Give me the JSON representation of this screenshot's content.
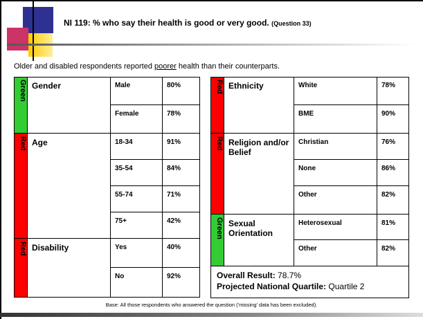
{
  "title": "NI 119: % who say their health is good or very good.",
  "title_note": "(Question 33)",
  "subtitle": [
    "Older and disabled respondents reported ",
    "poorer",
    " health than their counterparts."
  ],
  "left_table": [
    {
      "status": "Green",
      "group": "Gender",
      "rows": [
        [
          "Male",
          "80%"
        ],
        [
          "Female",
          "78%"
        ]
      ]
    },
    {
      "status": "Red",
      "group": "Age",
      "rows": [
        [
          "18-34",
          "91%"
        ],
        [
          "35-54",
          "84%"
        ],
        [
          "55-74",
          "71%"
        ],
        [
          "75+",
          "42%"
        ]
      ]
    },
    {
      "status": "Red",
      "group": "Disability",
      "rows": [
        [
          "Yes",
          "40%"
        ],
        [
          "No",
          "92%"
        ]
      ]
    }
  ],
  "right_table": [
    {
      "status": "Red",
      "group": "Ethnicity",
      "rows": [
        [
          "White",
          "78%"
        ],
        [
          "BME",
          "90%"
        ]
      ]
    },
    {
      "status": "Red",
      "group": "Religion and/or Belief",
      "rows": [
        [
          "Christian",
          "76%"
        ],
        [
          "None",
          "86%"
        ],
        [
          "Other",
          "82%"
        ]
      ]
    },
    {
      "status": "Green",
      "group": "Sexual Orientation",
      "rows": [
        [
          "Heterosexual",
          "81%"
        ],
        [
          "Other",
          "82%"
        ]
      ]
    }
  ],
  "overall": {
    "label": "Overall Result:",
    "value": "78.7%"
  },
  "quartile": {
    "label": "Projected National Quartile:",
    "value": "Quartile 2"
  },
  "footer": "Base: All those respondents who answered the question ('missing' data has been excluded)."
}
